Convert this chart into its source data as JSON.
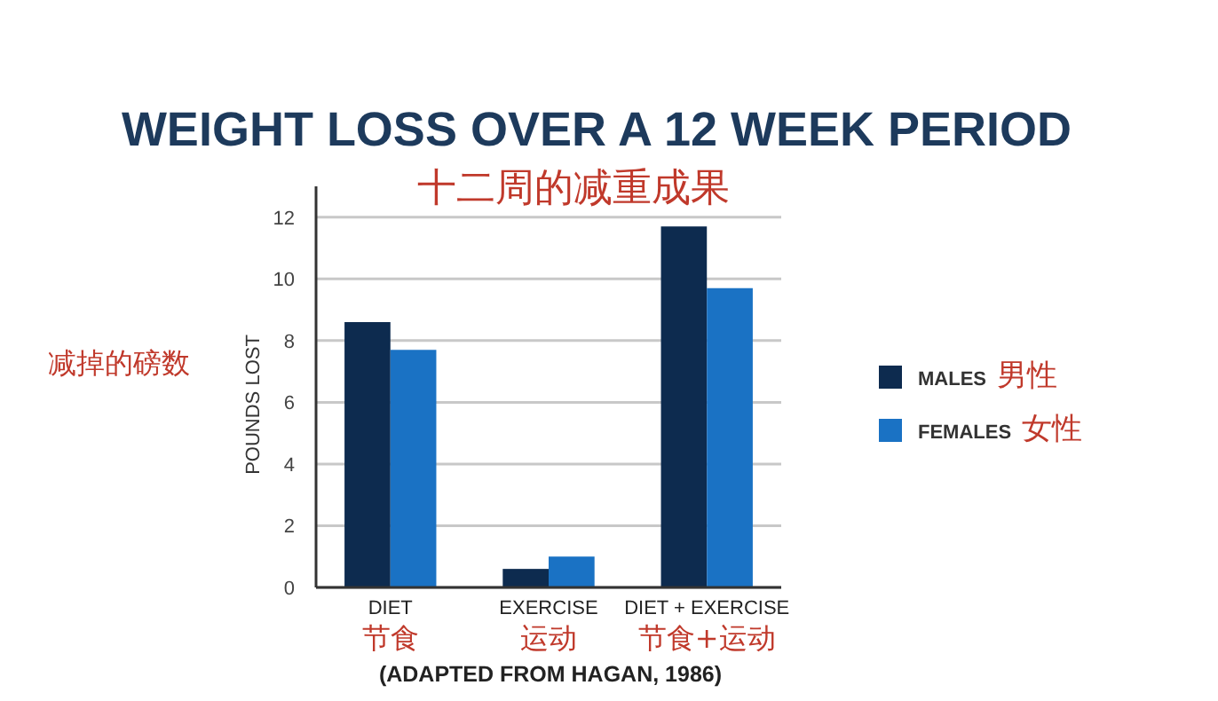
{
  "chart_data": {
    "type": "bar",
    "title": "WEIGHT LOSS OVER A 12 WEEK PERIOD",
    "subtitle": "十二周的减重成果",
    "ylabel": "POUNDS LOST",
    "annotations": [
      "减掉的磅数",
      "(ADAPTED FROM HAGAN, 1986)"
    ],
    "categories": [
      "DIET\n节食",
      "EXERCISE\n运动",
      "DIET + EXERCISE\n节食+运动"
    ],
    "series": [
      {
        "name": "MALES\n男性",
        "color": "#0d2b4f",
        "values": [
          8.6,
          0.6,
          11.7
        ]
      },
      {
        "name": "FEMALES\n女性",
        "color": "#1a72c4",
        "values": [
          7.7,
          1.0,
          9.7
        ]
      }
    ],
    "ylim": [
      0,
      13
    ],
    "yticks": [
      0,
      2,
      4,
      6,
      8,
      10,
      12
    ],
    "grid": "y",
    "legend": "right"
  }
}
